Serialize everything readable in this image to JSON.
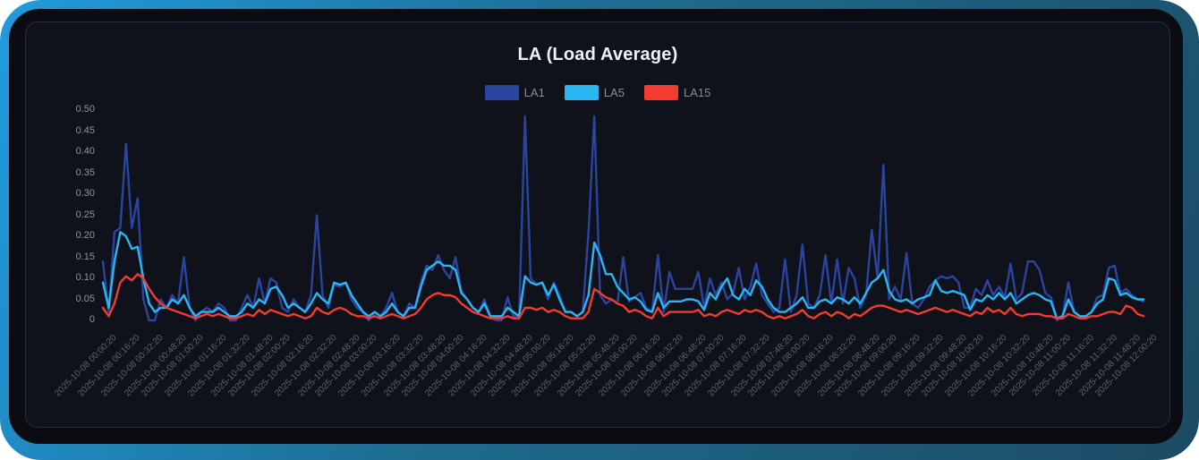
{
  "page": {
    "background": "#ffffff",
    "frame_gradient_start": "#219CDE",
    "frame_gradient_end": "#1C4B64",
    "inner_bg": "#0A0C11",
    "panel_bg": "#0F121B",
    "panel_border": "#272C37"
  },
  "chart": {
    "title": "LA (Load Average)",
    "title_color": "#EEF1F4",
    "legend": [
      {
        "label": "LA1",
        "color": "#2B459F"
      },
      {
        "label": "LA5",
        "color": "#29B6F2"
      },
      {
        "label": "LA15",
        "color": "#F43B30"
      }
    ],
    "axis": {
      "y_label_color": "#8F949E",
      "x_label_color": "#5C626C"
    }
  },
  "chart_data": {
    "type": "line",
    "title": "LA (Load Average)",
    "xlabel": "",
    "ylabel": "",
    "ylim": [
      0,
      0.5
    ],
    "grid": false,
    "legend_position": "top-center",
    "y_tick_labels": [
      "0.50",
      "0.45",
      "0.40",
      "0.35",
      "0.30",
      "0.25",
      "0.20",
      "0.15",
      "0.10",
      "0.05",
      "0"
    ],
    "x_tick_labels": [
      "2025-10-08 00:00:20",
      "2025-10-08 00:16:20",
      "2025-10-08 00:32:20",
      "2025-10-08 00:48:20",
      "2025-10-08 01:00:20",
      "2025-10-08 01:16:20",
      "2025-10-08 01:32:20",
      "2025-10-08 01:48:20",
      "2025-10-08 02:00:20",
      "2025-10-08 02:16:20",
      "2025-10-08 02:32:20",
      "2025-10-08 02:48:20",
      "2025-10-08 03:00:20",
      "2025-10-08 03:16:20",
      "2025-10-08 03:32:20",
      "2025-10-08 03:48:20",
      "2025-10-08 04:00:20",
      "2025-10-08 04:16:20",
      "2025-10-08 04:32:20",
      "2025-10-08 04:48:20",
      "2025-10-08 05:00:20",
      "2025-10-08 05:16:20",
      "2025-10-08 05:32:20",
      "2025-10-08 05:48:20",
      "2025-10-08 06:00:20",
      "2025-10-08 06:16:20",
      "2025-10-08 06:32:20",
      "2025-10-08 06:48:20",
      "2025-10-08 07:00:20",
      "2025-10-08 07:16:20",
      "2025-10-08 07:32:20",
      "2025-10-08 07:48:20",
      "2025-10-08 08:00:20",
      "2025-10-08 08:16:20",
      "2025-10-08 08:32:20",
      "2025-10-08 08:48:20",
      "2025-10-08 09:00:20",
      "2025-10-08 09:16:20",
      "2025-10-08 09:32:20",
      "2025-10-08 09:48:20",
      "2025-10-08 10:00:20",
      "2025-10-08 10:16:20",
      "2025-10-08 10:32:20",
      "2025-10-08 10:48:20",
      "2025-10-08 11:00:20",
      "2025-10-08 11:16:20",
      "2025-10-08 11:32:20",
      "2025-10-08 11:48:20",
      "2025-10-08 12:00:20"
    ],
    "series": [
      {
        "name": "LA1",
        "color": "#2B459F",
        "values": [
          0.14,
          0.02,
          0.21,
          0.22,
          0.42,
          0.22,
          0.29,
          0.05,
          0.0,
          0.0,
          0.05,
          0.03,
          0.06,
          0.04,
          0.15,
          0.03,
          0.0,
          0.02,
          0.03,
          0.02,
          0.04,
          0.03,
          0.0,
          0.0,
          0.03,
          0.06,
          0.03,
          0.1,
          0.04,
          0.1,
          0.09,
          0.03,
          0.02,
          0.05,
          0.03,
          0.02,
          0.06,
          0.25,
          0.06,
          0.03,
          0.085,
          0.08,
          0.09,
          0.05,
          0.03,
          0.02,
          0.0,
          0.02,
          0.01,
          0.03,
          0.065,
          0.02,
          0.01,
          0.04,
          0.03,
          0.09,
          0.13,
          0.12,
          0.155,
          0.12,
          0.1,
          0.15,
          0.07,
          0.05,
          0.03,
          0.02,
          0.05,
          0.01,
          0.0,
          0.0,
          0.055,
          0.01,
          0.01,
          0.485,
          0.1,
          0.085,
          0.09,
          0.05,
          0.09,
          0.06,
          0.02,
          0.02,
          0.01,
          0.02,
          0.21,
          0.485,
          0.06,
          0.04,
          0.05,
          0.04,
          0.15,
          0.045,
          0.055,
          0.065,
          0.03,
          0.02,
          0.155,
          0.02,
          0.115,
          0.075,
          0.075,
          0.075,
          0.075,
          0.115,
          0.03,
          0.1,
          0.06,
          0.09,
          0.05,
          0.065,
          0.125,
          0.05,
          0.08,
          0.135,
          0.06,
          0.04,
          0.02,
          0.03,
          0.145,
          0.02,
          0.06,
          0.18,
          0.04,
          0.03,
          0.06,
          0.155,
          0.04,
          0.145,
          0.04,
          0.125,
          0.1,
          0.03,
          0.06,
          0.215,
          0.1,
          0.37,
          0.05,
          0.08,
          0.05,
          0.16,
          0.04,
          0.03,
          0.05,
          0.08,
          0.095,
          0.105,
          0.1,
          0.105,
          0.09,
          0.03,
          0.03,
          0.075,
          0.06,
          0.095,
          0.06,
          0.08,
          0.055,
          0.135,
          0.05,
          0.065,
          0.14,
          0.14,
          0.12,
          0.065,
          0.055,
          0.0,
          0.01,
          0.09,
          0.02,
          0.01,
          0.01,
          0.02,
          0.055,
          0.06,
          0.125,
          0.13,
          0.065,
          0.075,
          0.06,
          0.05,
          0.045
        ]
      },
      {
        "name": "LA5",
        "color": "#29B6F2",
        "values": [
          0.09,
          0.03,
          0.14,
          0.21,
          0.2,
          0.17,
          0.175,
          0.1,
          0.04,
          0.02,
          0.03,
          0.03,
          0.05,
          0.04,
          0.06,
          0.03,
          0.01,
          0.02,
          0.02,
          0.02,
          0.03,
          0.02,
          0.01,
          0.01,
          0.02,
          0.04,
          0.03,
          0.05,
          0.04,
          0.075,
          0.08,
          0.06,
          0.03,
          0.04,
          0.03,
          0.02,
          0.04,
          0.065,
          0.05,
          0.04,
          0.09,
          0.085,
          0.09,
          0.06,
          0.04,
          0.02,
          0.01,
          0.02,
          0.01,
          0.02,
          0.04,
          0.02,
          0.01,
          0.03,
          0.03,
          0.08,
          0.12,
          0.13,
          0.14,
          0.13,
          0.13,
          0.12,
          0.065,
          0.05,
          0.03,
          0.02,
          0.04,
          0.01,
          0.01,
          0.01,
          0.03,
          0.02,
          0.01,
          0.105,
          0.09,
          0.085,
          0.09,
          0.06,
          0.085,
          0.05,
          0.02,
          0.02,
          0.01,
          0.02,
          0.06,
          0.185,
          0.155,
          0.11,
          0.11,
          0.08,
          0.065,
          0.05,
          0.055,
          0.045,
          0.025,
          0.02,
          0.065,
          0.03,
          0.045,
          0.045,
          0.045,
          0.05,
          0.05,
          0.045,
          0.025,
          0.065,
          0.05,
          0.08,
          0.1,
          0.06,
          0.05,
          0.075,
          0.06,
          0.095,
          0.08,
          0.05,
          0.03,
          0.02,
          0.02,
          0.03,
          0.04,
          0.055,
          0.03,
          0.03,
          0.045,
          0.05,
          0.04,
          0.055,
          0.05,
          0.04,
          0.055,
          0.04,
          0.065,
          0.09,
          0.1,
          0.12,
          0.07,
          0.05,
          0.045,
          0.05,
          0.04,
          0.05,
          0.055,
          0.06,
          0.095,
          0.07,
          0.065,
          0.07,
          0.065,
          0.06,
          0.025,
          0.05,
          0.045,
          0.06,
          0.05,
          0.065,
          0.05,
          0.065,
          0.04,
          0.05,
          0.06,
          0.065,
          0.06,
          0.05,
          0.045,
          0.005,
          0.01,
          0.05,
          0.02,
          0.01,
          0.01,
          0.02,
          0.04,
          0.05,
          0.1,
          0.095,
          0.06,
          0.065,
          0.055,
          0.05,
          0.05
        ]
      },
      {
        "name": "LA15",
        "color": "#F43B30",
        "values": [
          0.03,
          0.01,
          0.04,
          0.09,
          0.105,
          0.095,
          0.11,
          0.1,
          0.075,
          0.055,
          0.04,
          0.03,
          0.025,
          0.02,
          0.015,
          0.01,
          0.005,
          0.01,
          0.015,
          0.01,
          0.015,
          0.01,
          0.005,
          0.005,
          0.01,
          0.015,
          0.01,
          0.025,
          0.015,
          0.025,
          0.02,
          0.015,
          0.01,
          0.015,
          0.01,
          0.005,
          0.01,
          0.03,
          0.02,
          0.015,
          0.025,
          0.03,
          0.025,
          0.015,
          0.01,
          0.01,
          0.005,
          0.01,
          0.005,
          0.01,
          0.015,
          0.01,
          0.005,
          0.01,
          0.015,
          0.03,
          0.05,
          0.06,
          0.065,
          0.06,
          0.06,
          0.055,
          0.04,
          0.03,
          0.02,
          0.015,
          0.01,
          0.005,
          0.005,
          0.005,
          0.01,
          0.005,
          0.005,
          0.03,
          0.03,
          0.025,
          0.03,
          0.02,
          0.025,
          0.02,
          0.01,
          0.005,
          0.005,
          0.005,
          0.02,
          0.075,
          0.065,
          0.055,
          0.05,
          0.04,
          0.035,
          0.02,
          0.025,
          0.02,
          0.01,
          0.005,
          0.03,
          0.01,
          0.02,
          0.02,
          0.02,
          0.02,
          0.02,
          0.025,
          0.01,
          0.015,
          0.01,
          0.02,
          0.025,
          0.02,
          0.015,
          0.025,
          0.02,
          0.025,
          0.02,
          0.01,
          0.005,
          0.01,
          0.005,
          0.01,
          0.015,
          0.025,
          0.01,
          0.005,
          0.015,
          0.02,
          0.01,
          0.02,
          0.015,
          0.005,
          0.015,
          0.01,
          0.02,
          0.03,
          0.035,
          0.035,
          0.03,
          0.025,
          0.02,
          0.025,
          0.02,
          0.015,
          0.02,
          0.025,
          0.03,
          0.025,
          0.02,
          0.025,
          0.02,
          0.015,
          0.01,
          0.02,
          0.015,
          0.03,
          0.02,
          0.025,
          0.015,
          0.03,
          0.015,
          0.01,
          0.015,
          0.015,
          0.015,
          0.01,
          0.01,
          0.005,
          0.005,
          0.015,
          0.01,
          0.005,
          0.005,
          0.01,
          0.01,
          0.015,
          0.02,
          0.02,
          0.015,
          0.035,
          0.03,
          0.015,
          0.01
        ]
      }
    ]
  }
}
